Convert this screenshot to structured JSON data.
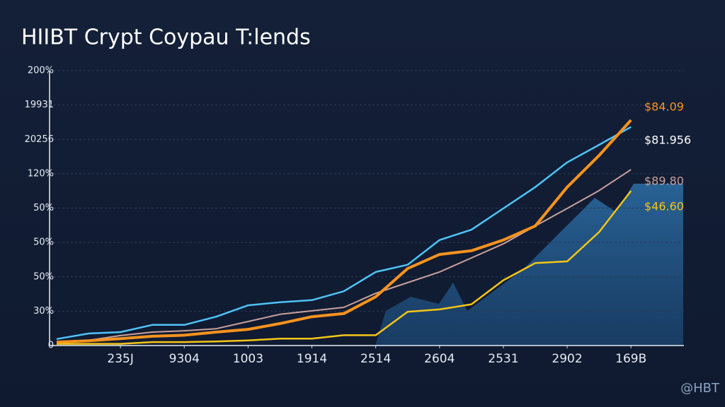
{
  "chart_data": {
    "type": "line",
    "title": "HIIBT Crypt Coypau T:lends",
    "x": [
      0,
      0.5,
      1,
      1.5,
      2,
      2.5,
      3,
      3.5,
      4,
      4.5,
      5,
      5.5,
      6,
      6.5,
      7,
      7.5,
      8,
      8.5,
      9
    ],
    "series": [
      {
        "name": "$81.956",
        "color": "#4fc3f7",
        "values": [
          0.19,
          0.35,
          0.39,
          0.6,
          0.6,
          0.84,
          1.17,
          1.26,
          1.32,
          1.58,
          2.14,
          2.35,
          3.07,
          3.37,
          3.99,
          4.61,
          5.33,
          5.84,
          6.36
        ]
      },
      {
        "name": "$89.80",
        "color": "#c9a19c",
        "values": [
          0.08,
          0.15,
          0.29,
          0.39,
          0.43,
          0.49,
          0.7,
          0.91,
          1.01,
          1.11,
          1.52,
          1.83,
          2.14,
          2.55,
          2.96,
          3.48,
          3.99,
          4.51,
          5.12
        ]
      },
      {
        "name": "$46.60",
        "color": "#f5c518",
        "values": [
          0.05,
          0.05,
          0.05,
          0.1,
          0.1,
          0.12,
          0.15,
          0.2,
          0.2,
          0.3,
          0.3,
          0.98,
          1.05,
          1.2,
          1.9,
          2.4,
          2.45,
          3.3,
          4.5
        ]
      },
      {
        "name": "$84.09",
        "color": "#f7931e",
        "values": [
          0.1,
          0.14,
          0.2,
          0.27,
          0.3,
          0.39,
          0.47,
          0.64,
          0.84,
          0.93,
          1.42,
          2.24,
          2.65,
          2.76,
          3.07,
          3.48,
          4.61,
          5.53,
          6.56
        ]
      }
    ],
    "xlim": [
      0,
      9.83
    ],
    "xticks": [
      {
        "value": 1,
        "label": "235J"
      },
      {
        "value": 2,
        "label": "9304"
      },
      {
        "value": 3,
        "label": "1003"
      },
      {
        "value": 4,
        "label": "1914"
      },
      {
        "value": 5,
        "label": "2514"
      },
      {
        "value": 6,
        "label": "2604"
      },
      {
        "value": 7,
        "label": "2531"
      },
      {
        "value": 8,
        "label": "2902"
      },
      {
        "value": 9,
        "label": "169B"
      }
    ],
    "ylim": [
      0,
      8
    ],
    "yticks": [
      0,
      {
        "value": 1,
        "label": "30%"
      },
      {
        "value": 2,
        "label": "50%"
      },
      {
        "value": 3,
        "label": "50%"
      },
      {
        "value": 4,
        "label": "50%"
      },
      {
        "value": 5,
        "label": "120%"
      },
      {
        "value": 6,
        "label": "20256"
      },
      {
        "value": 7,
        "label": "19931"
      },
      {
        "value": 8,
        "label": "200%"
      }
    ],
    "grid": true,
    "watermark": "@HBT"
  }
}
